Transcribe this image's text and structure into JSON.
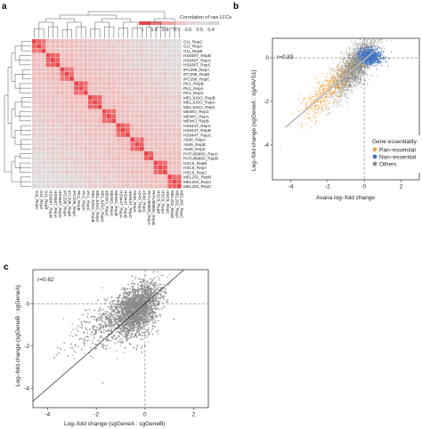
{
  "panels": {
    "a": {
      "letter": "a"
    },
    "b": {
      "letter": "b"
    },
    "c": {
      "letter": "c"
    }
  },
  "chart_data": [
    {
      "panel": "a",
      "type": "heatmap",
      "color_legend": {
        "title": "Correlation of raw LFCs",
        "ticks": [
          "1",
          "0.9",
          "0.8",
          "0.7",
          "0.6",
          "0.5",
          "0.4"
        ]
      },
      "colors": {
        "high": "#e8474c",
        "mid": "#f4b5b5",
        "low": "#dcdcdc"
      },
      "labels": [
        "GI1_RepC",
        "GI1_RepA",
        "GI1_RepB",
        "HS936T_RepB",
        "HS936T_RepA",
        "HS936T_RepC",
        "IPC298_RepA",
        "IPC298_RepB",
        "IPC298_RepC",
        "PK1_RepB",
        "PK1_RepA",
        "PK1_RepC",
        "MELJUSO_RepB",
        "MELJUSO_RepA",
        "MELJUSO_RepC",
        "MEWO_RepC",
        "MEWO_RepA",
        "MEWO_RepB",
        "HS944T_RepA",
        "HS944T_RepB",
        "HS944T_RepC",
        "A549_RepA",
        "A549_RepB",
        "A549_RepC",
        "PATU8988S_RepA",
        "PATU8988S_RepB",
        "HSC5_RepB",
        "HSC5_RepA",
        "HSC5_RepC",
        "MEL202_RepB",
        "MEL202_RepA",
        "MEL202_RepC"
      ],
      "groups": [
        3,
        3,
        3,
        3,
        3,
        3,
        3,
        3,
        2,
        3,
        3
      ]
    },
    {
      "panel": "b",
      "type": "scatter",
      "annotation": "r=0.83",
      "xlabel": "Avana log–fold change",
      "ylabel": "Log–fold change (sgGeneA : sgAAVS1)",
      "xlim": [
        -5,
        3
      ],
      "ylim": [
        -5.6,
        0.9
      ],
      "xticks": [
        "-4",
        "-2",
        "0",
        "2"
      ],
      "yticks": [
        "0",
        "-2",
        "-4"
      ],
      "legend": {
        "title": "Gene essentiality",
        "items": [
          {
            "name": "Pan–essential",
            "color": "#f0a742"
          },
          {
            "name": "Non–essential",
            "color": "#3f74c7"
          },
          {
            "name": "Others",
            "color": "#8a8a8a"
          }
        ]
      }
    },
    {
      "panel": "c",
      "type": "scatter",
      "annotation": "r=0.62",
      "xlabel": "Log–fold change (sgGeneA : sgGeneB)",
      "ylabel": "Log–fold change (sgGeneB : sgGeneA)",
      "xlim": [
        -4.6,
        2.6
      ],
      "ylim": [
        -4.9,
        1.6
      ],
      "xticks": [
        "-4",
        "-2",
        "0",
        "2"
      ],
      "yticks": [
        "0",
        "-2",
        "-4"
      ],
      "color": "#8c8c8c"
    }
  ]
}
